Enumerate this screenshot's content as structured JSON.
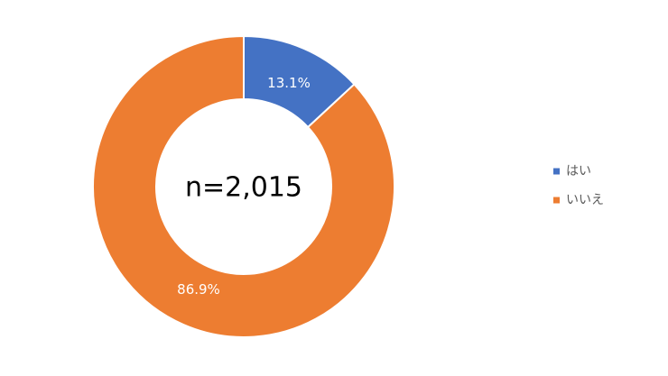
{
  "chart_data": {
    "type": "donut",
    "categories": [
      "はい",
      "いいえ"
    ],
    "values": [
      13.1,
      86.9
    ],
    "value_labels": [
      "13.1%",
      "86.9%"
    ],
    "colors": [
      "#4472c4",
      "#ed7d31"
    ],
    "center_label": "n=2,015",
    "legend": "right"
  }
}
